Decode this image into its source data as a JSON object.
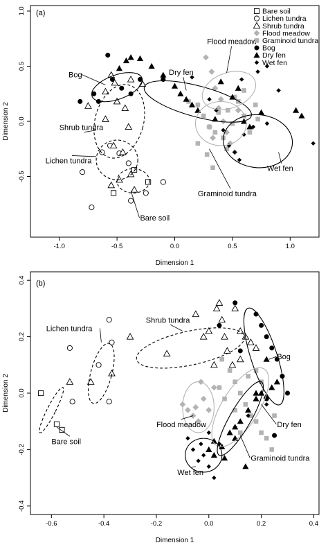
{
  "chart_data": [
    {
      "type": "scatter",
      "panel_label": "(a)",
      "xlabel": "Dimension 1",
      "ylabel": "Dimension 2",
      "xlim": [
        -1.25,
        1.25
      ],
      "ylim": [
        -1.05,
        1.05
      ],
      "xticks": [
        -1.0,
        -0.5,
        0.0,
        0.5,
        1.0
      ],
      "xtick_labels": [
        "-1.0",
        "-0.5",
        "0.0",
        "0.5",
        "1.0"
      ],
      "yticks": [
        -0.5,
        0.0,
        0.5,
        1.0
      ],
      "ytick_labels": [
        "-0.5",
        "0.0",
        "0.5",
        "1.0"
      ],
      "grid": false,
      "legend": {
        "placement": "top-right",
        "entries": [
          {
            "label": "Bare soil",
            "marker": "square-open",
            "color": "#000000"
          },
          {
            "label": "Lichen tundra",
            "marker": "circle-open",
            "color": "#000000"
          },
          {
            "label": "Shrub tundra",
            "marker": "triangle-open",
            "color": "#000000"
          },
          {
            "label": "Flood meadow",
            "marker": "diamond",
            "color": "#b3b3b3"
          },
          {
            "label": "Graminoid tundra",
            "marker": "square",
            "color": "#b3b3b3"
          },
          {
            "label": "Bog",
            "marker": "circle",
            "color": "#000000"
          },
          {
            "label": "Dry fen",
            "marker": "triangle",
            "color": "#000000"
          },
          {
            "label": "Wet fen",
            "marker": "diamond-small",
            "color": "#000000"
          }
        ]
      },
      "series": [
        {
          "group": "Bare soil",
          "marker": "square-open",
          "color": "#000000",
          "x": [
            -0.35,
            -0.23,
            -0.53
          ],
          "y": [
            -0.44,
            -0.55,
            -0.65
          ]
        },
        {
          "group": "Lichen tundra",
          "marker": "circle-open",
          "color": "#000000",
          "x": [
            -0.8,
            -0.63,
            -0.56,
            -0.48,
            -0.4,
            -0.38,
            -0.25,
            -0.1,
            -0.72
          ],
          "y": [
            -0.46,
            -0.28,
            -0.22,
            -0.29,
            -0.38,
            -0.72,
            -0.65,
            -0.55,
            -0.78
          ]
        },
        {
          "group": "Shrub tundra",
          "marker": "triangle-open",
          "color": "#000000",
          "x": [
            -0.55,
            -0.38,
            -0.28,
            -0.5,
            -0.6,
            -0.75,
            -0.4,
            -0.53,
            -0.45,
            -0.38,
            -0.48,
            -0.55,
            -0.35,
            -0.43,
            -0.52,
            -0.6
          ],
          "y": [
            0.42,
            0.38,
            0.34,
            0.18,
            0.02,
            0.14,
            -0.05,
            -0.22,
            -0.28,
            -0.48,
            -0.53,
            -0.58,
            -0.62,
            0.12,
            0.35,
            0.27
          ]
        },
        {
          "group": "Flood meadow",
          "marker": "diamond",
          "color": "#b3b3b3",
          "x": [
            0.27,
            0.32,
            0.35,
            0.38,
            0.42,
            0.45,
            0.48,
            0.52,
            0.3,
            0.4,
            0.55,
            0.33
          ],
          "y": [
            0.58,
            0.45,
            0.3,
            0.12,
            0.0,
            -0.1,
            -0.2,
            -0.28,
            -0.05,
            0.2,
            0.1,
            -0.15
          ]
        },
        {
          "group": "Graminoid tundra",
          "marker": "square",
          "color": "#b3b3b3",
          "x": [
            0.12,
            0.2,
            0.25,
            0.3,
            0.35,
            0.38,
            0.42,
            0.46,
            0.5,
            0.55,
            0.6,
            0.65,
            0.7,
            0.2,
            0.28,
            0.33,
            0.45,
            0.52,
            0.6,
            0.72
          ],
          "y": [
            0.18,
            0.15,
            0.05,
            -0.05,
            -0.1,
            0.08,
            -0.15,
            0.1,
            -0.02,
            0.18,
            0.05,
            -0.1,
            0.15,
            -0.2,
            -0.3,
            -0.42,
            -0.25,
            0.22,
            0.28,
            0.02
          ]
        },
        {
          "group": "Bog",
          "marker": "circle",
          "color": "#000000",
          "x": [
            -0.58,
            -0.54,
            -0.46,
            -0.38,
            -0.3,
            -0.66,
            -0.82,
            -0.7,
            -0.1
          ],
          "y": [
            0.6,
            0.38,
            0.3,
            0.25,
            0.38,
            0.18,
            0.18,
            0.25,
            0.38
          ]
        },
        {
          "group": "Dry fen",
          "marker": "triangle",
          "color": "#000000",
          "x": [
            -0.48,
            -0.42,
            -0.38,
            -0.3,
            -0.2,
            -0.1,
            0.0,
            0.05,
            0.1,
            0.15,
            0.2,
            0.4,
            0.5,
            0.55,
            0.6,
            0.65,
            0.75,
            1.05,
            1.1,
            0.35
          ],
          "y": [
            0.48,
            0.55,
            0.58,
            0.57,
            0.5,
            0.42,
            0.32,
            0.25,
            0.2,
            0.15,
            0.1,
            0.36,
            0.22,
            0.3,
            0.0,
            -0.05,
            0.08,
            0.1,
            0.05,
            0.02
          ]
        },
        {
          "group": "Wet fen",
          "marker": "diamond-small",
          "color": "#000000",
          "x": [
            0.15,
            0.3,
            0.36,
            0.42,
            0.47,
            0.52,
            0.56,
            0.6,
            0.68,
            0.72,
            0.8,
            0.9,
            1.2,
            0.58,
            0.8
          ],
          "y": [
            0.4,
            0.2,
            0.1,
            -0.08,
            -0.22,
            -0.28,
            -0.35,
            -0.12,
            -0.05,
            0.45,
            0.5,
            0.28,
            -0.2,
            0.38,
            -0.02
          ]
        }
      ],
      "ellipses": [
        {
          "label": "Bog",
          "cx": -0.5,
          "cy": 0.31,
          "rx": 0.23,
          "ry": 0.11,
          "angle": -20,
          "color": "#000000",
          "dash": false
        },
        {
          "label": "Dry fen",
          "cx": 0.2,
          "cy": 0.18,
          "rx": 0.48,
          "ry": 0.14,
          "angle": 15,
          "color": "#000000",
          "dash": false
        },
        {
          "label": "Flood meadow",
          "cx": 0.47,
          "cy": 0.28,
          "rx": 0.24,
          "ry": 0.16,
          "angle": -20,
          "color": "#b3b3b3",
          "dash": false
        },
        {
          "label": "Graminoid tundra",
          "cx": 0.4,
          "cy": -0.02,
          "rx": 0.22,
          "ry": 0.2,
          "angle": 0,
          "color": "#b3b3b3",
          "dash": false
        },
        {
          "label": "Wet fen",
          "cx": 0.72,
          "cy": -0.18,
          "rx": 0.3,
          "ry": 0.24,
          "angle": 5,
          "color": "#000000",
          "dash": false
        },
        {
          "label": "Shrub tundra",
          "cx": -0.48,
          "cy": 0.0,
          "rx": 0.21,
          "ry": 0.34,
          "angle": 15,
          "color": "#000000",
          "dash": true
        },
        {
          "label": "Lichen tundra",
          "cx": -0.5,
          "cy": -0.35,
          "rx": 0.18,
          "ry": 0.18,
          "angle": 0,
          "color": "#000000",
          "dash": true
        },
        {
          "label": "Bare soil",
          "cx": -0.36,
          "cy": -0.54,
          "rx": 0.14,
          "ry": 0.11,
          "angle": 0,
          "color": "#000000",
          "dash": true
        }
      ],
      "annotations": [
        {
          "text": "Bog",
          "x": -0.92,
          "y": 0.4,
          "to": [
            -0.6,
            0.33
          ]
        },
        {
          "text": "Dry fen",
          "x": -0.05,
          "y": 0.42,
          "to": [
            0.1,
            0.28
          ]
        },
        {
          "text": "Flood meadow",
          "x": 0.28,
          "y": 0.7,
          "to": [
            0.45,
            0.44
          ]
        },
        {
          "text": "Shrub tundra",
          "x": -1.0,
          "y": -0.08,
          "to": [
            -0.68,
            -0.08
          ]
        },
        {
          "text": "Lichen tundra",
          "x": -1.12,
          "y": -0.38,
          "to": [
            -0.68,
            -0.32
          ]
        },
        {
          "text": "Graminoid tundra",
          "x": 0.2,
          "y": -0.68,
          "to": [
            0.3,
            -0.25
          ]
        },
        {
          "text": "Bare soil",
          "x": -0.3,
          "y": -0.9,
          "to": [
            -0.38,
            -0.63
          ]
        },
        {
          "text": "Wet fen",
          "x": 0.8,
          "y": -0.45,
          "to": [
            0.9,
            -0.28
          ]
        }
      ]
    },
    {
      "type": "scatter",
      "panel_label": "(b)",
      "xlabel": "Dimension 1",
      "ylabel": "Dimension 2",
      "xlim": [
        -0.68,
        0.42
      ],
      "ylim": [
        -0.43,
        0.43
      ],
      "xticks": [
        -0.6,
        -0.4,
        -0.2,
        0.0,
        0.2,
        0.4
      ],
      "xtick_labels": [
        "-0.6",
        "-0.4",
        "-0.2",
        "0.0",
        "0.2",
        "0.4"
      ],
      "yticks": [
        -0.4,
        -0.2,
        0.0,
        0.2,
        0.4
      ],
      "ytick_labels": [
        "-0.4",
        "-0.2",
        "0.0",
        "0.2",
        "0.4"
      ],
      "grid": false,
      "series": [
        {
          "group": "Bare soil",
          "marker": "square-open",
          "color": "#000000",
          "x": [
            -0.64,
            -0.58,
            -0.56
          ],
          "y": [
            0.0,
            -0.11,
            -0.13
          ]
        },
        {
          "group": "Lichen tundra",
          "marker": "circle-open",
          "color": "#000000",
          "x": [
            -0.38,
            -0.37,
            -0.42,
            -0.38,
            -0.52,
            -0.53
          ],
          "y": [
            0.26,
            0.18,
            0.1,
            -0.03,
            -0.03,
            0.16
          ]
        },
        {
          "group": "Shrub tundra",
          "marker": "triangle-open",
          "color": "#000000",
          "x": [
            -0.53,
            -0.45,
            -0.37,
            -0.3,
            -0.16,
            -0.05,
            -0.02,
            0.0,
            0.03,
            0.04,
            0.05,
            0.07,
            0.09,
            0.12,
            0.14,
            0.16,
            0.18,
            0.1,
            0.02,
            0.06,
            0.12
          ],
          "y": [
            0.04,
            0.04,
            0.07,
            0.2,
            0.14,
            0.28,
            0.2,
            0.22,
            0.3,
            0.32,
            0.26,
            0.15,
            0.1,
            0.22,
            0.2,
            0.18,
            0.16,
            0.3,
            0.1,
            0.2,
            0.12
          ]
        },
        {
          "group": "Flood meadow",
          "marker": "diamond",
          "color": "#b3b3b3",
          "x": [
            -0.1,
            -0.08,
            -0.06,
            -0.05,
            -0.04,
            -0.02,
            0.0,
            0.02,
            -0.03
          ],
          "y": [
            -0.04,
            -0.06,
            -0.08,
            -0.05,
            -0.1,
            -0.02,
            -0.06,
            0.02,
            0.04
          ]
        },
        {
          "group": "Graminoid tundra",
          "marker": "square",
          "color": "#b3b3b3",
          "x": [
            0.05,
            0.08,
            0.1,
            0.12,
            0.14,
            0.16,
            0.18,
            0.2,
            0.22,
            0.24,
            0.06,
            0.1,
            0.15,
            0.2,
            0.25,
            0.04,
            0.12,
            0.18
          ],
          "y": [
            0.12,
            0.08,
            0.04,
            0.0,
            -0.04,
            -0.08,
            -0.1,
            -0.14,
            -0.16,
            -0.2,
            -0.02,
            -0.06,
            0.06,
            0.04,
            -0.08,
            0.02,
            -0.14,
            0.08
          ]
        },
        {
          "group": "Bog",
          "marker": "circle",
          "color": "#000000",
          "x": [
            0.1,
            0.18,
            0.2,
            0.22,
            0.24,
            0.26,
            0.28,
            0.3,
            0.22,
            0.25,
            0.12,
            0.04
          ],
          "y": [
            0.32,
            0.28,
            0.24,
            0.2,
            0.16,
            0.12,
            0.06,
            0.0,
            -0.02,
            -0.15,
            0.15,
            0.24
          ]
        },
        {
          "group": "Dry fen",
          "marker": "triangle",
          "color": "#000000",
          "x": [
            0.0,
            0.02,
            0.05,
            0.08,
            0.1,
            0.12,
            0.15,
            0.18,
            0.2,
            0.22,
            0.24,
            0.26,
            0.14,
            0.1,
            0.06,
            0.02,
            0.18,
            0.22
          ],
          "y": [
            -0.2,
            -0.22,
            -0.19,
            -0.14,
            -0.12,
            -0.1,
            -0.06,
            -0.02,
            0.0,
            -0.01,
            0.02,
            0.04,
            -0.26,
            -0.16,
            -0.23,
            -0.17,
            0.0,
            0.12
          ]
        },
        {
          "group": "Wet fen",
          "marker": "diamond-small",
          "color": "#000000",
          "x": [
            -0.08,
            -0.06,
            -0.04,
            -0.02,
            0.0,
            0.02,
            0.04,
            0.1,
            0.15,
            0.22,
            -0.03,
            0.0
          ],
          "y": [
            -0.16,
            -0.2,
            -0.24,
            -0.22,
            -0.26,
            -0.3,
            -0.18,
            -0.12,
            -0.08,
            -0.04,
            -0.18,
            -0.14
          ]
        }
      ],
      "ellipses": [
        {
          "label": "Shrub tundra",
          "cx": -0.07,
          "cy": 0.16,
          "rx": 0.21,
          "ry": 0.06,
          "angle": -12,
          "color": "#000000",
          "dash": true
        },
        {
          "label": "Bog",
          "cx": 0.21,
          "cy": 0.13,
          "rx": 0.05,
          "ry": 0.18,
          "angle": -18,
          "color": "#000000",
          "dash": false
        },
        {
          "label": "Lichen tundra",
          "cx": -0.41,
          "cy": 0.07,
          "rx": 0.04,
          "ry": 0.11,
          "angle": 15,
          "color": "#000000",
          "dash": true
        },
        {
          "label": "Bare soil",
          "cx": -0.6,
          "cy": -0.06,
          "rx": 0.016,
          "ry": 0.09,
          "angle": 27,
          "color": "#000000",
          "dash": true
        },
        {
          "label": "Flood meadow",
          "cx": -0.04,
          "cy": -0.05,
          "rx": 0.06,
          "ry": 0.09,
          "angle": 0,
          "color": "#b3b3b3",
          "dash": false
        },
        {
          "label": "Graminoid tundra",
          "cx": 0.12,
          "cy": -0.05,
          "rx": 0.07,
          "ry": 0.16,
          "angle": 32,
          "color": "#b3b3b3",
          "dash": false
        },
        {
          "label": "Dry fen",
          "cx": 0.12,
          "cy": -0.09,
          "rx": 0.04,
          "ry": 0.15,
          "angle": 30,
          "color": "#000000",
          "dash": false
        },
        {
          "label": "Wet fen",
          "cx": -0.02,
          "cy": -0.22,
          "rx": 0.07,
          "ry": 0.06,
          "angle": 0,
          "color": "#000000",
          "dash": false
        }
      ],
      "annotations": [
        {
          "text": "Lichen tundra",
          "x": -0.62,
          "y": 0.22,
          "to": [
            -0.41,
            0.18
          ]
        },
        {
          "text": "Shrub tundra",
          "x": -0.24,
          "y": 0.25,
          "to": [
            -0.1,
            0.22
          ]
        },
        {
          "text": "Bog",
          "x": 0.26,
          "y": 0.12,
          "to": [
            0.23,
            0.12
          ]
        },
        {
          "text": "Dry fen",
          "x": 0.26,
          "y": -0.12,
          "to": [
            0.2,
            -0.04
          ]
        },
        {
          "text": "Flood meadow",
          "x": -0.2,
          "y": -0.12,
          "to": [
            -0.06,
            -0.08
          ]
        },
        {
          "text": "Graminoid tundra",
          "x": 0.16,
          "y": -0.24,
          "to": [
            0.12,
            -0.15
          ]
        },
        {
          "text": "Wet fen",
          "x": -0.12,
          "y": -0.29,
          "to": [
            -0.05,
            -0.26
          ]
        },
        {
          "text": "Bare soil",
          "x": -0.6,
          "y": -0.18,
          "to": [
            -0.58,
            -0.12
          ]
        }
      ]
    }
  ]
}
